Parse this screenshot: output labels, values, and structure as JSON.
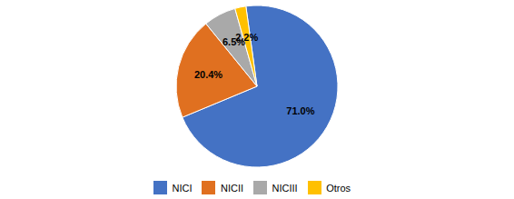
{
  "chart_data": {
    "type": "pie",
    "categories": [
      "NICI",
      "NICII",
      "NICIII",
      "Otros"
    ],
    "values": [
      71.0,
      20.4,
      6.5,
      2.2
    ],
    "value_labels": [
      "71.0%",
      "20.4%",
      "6.5%",
      "2.2%"
    ],
    "colors": [
      "#4472C4",
      "#E07020",
      "#A9A9A9",
      "#FFC000"
    ],
    "data_labels": true,
    "legend": "bottom"
  }
}
